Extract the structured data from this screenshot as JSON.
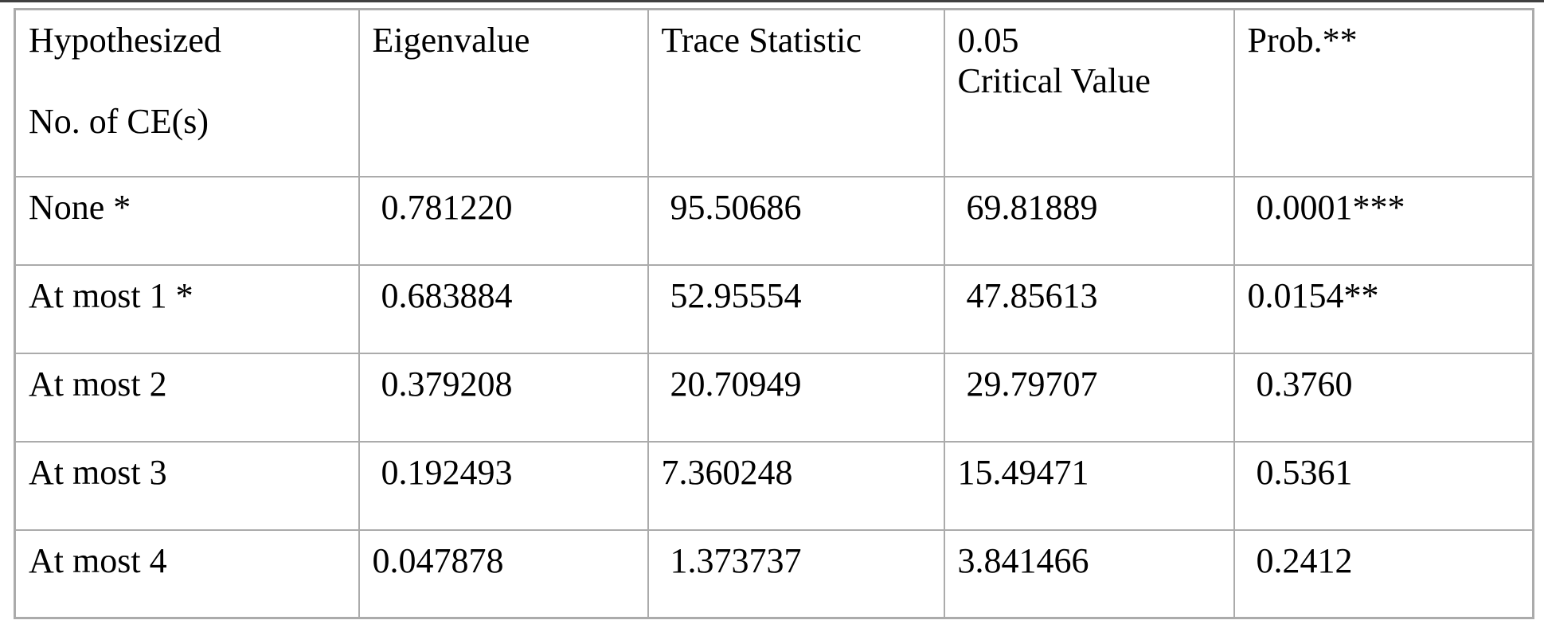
{
  "page": {
    "background_color": "#ffffff",
    "top_rule_color": "#3f3f3f",
    "table_border_color": "#ababab",
    "text_color": "#000000"
  },
  "table": {
    "description": "Johansen cointegration trace test results table",
    "header": {
      "hypothesized": "Hypothesized\n\nNo. of CE(s)",
      "eigenvalue": "Eigenvalue",
      "trace_statistic": "Trace Statistic",
      "critical_value": "0.05\nCritical Value",
      "prob": "Prob.**"
    },
    "rows": [
      {
        "hypothesized": "None *",
        "eigenvalue": " 0.781220",
        "trace_statistic": " 95.50686",
        "critical_value": " 69.81889",
        "prob": " 0.0001***"
      },
      {
        "hypothesized": "At most 1 *",
        "eigenvalue": " 0.683884",
        "trace_statistic": " 52.95554",
        "critical_value": " 47.85613",
        "prob": "0.0154**"
      },
      {
        "hypothesized": "At most 2",
        "eigenvalue": " 0.379208",
        "trace_statistic": " 20.70949",
        "critical_value": " 29.79707",
        "prob": " 0.3760"
      },
      {
        "hypothesized": "At most 3",
        "eigenvalue": " 0.192493",
        "trace_statistic": "7.360248",
        "critical_value": "15.49471",
        "prob": " 0.5361"
      },
      {
        "hypothesized": "At most 4",
        "eigenvalue": "0.047878",
        "trace_statistic": " 1.373737",
        "critical_value": "3.841466",
        "prob": " 0.2412"
      }
    ]
  }
}
